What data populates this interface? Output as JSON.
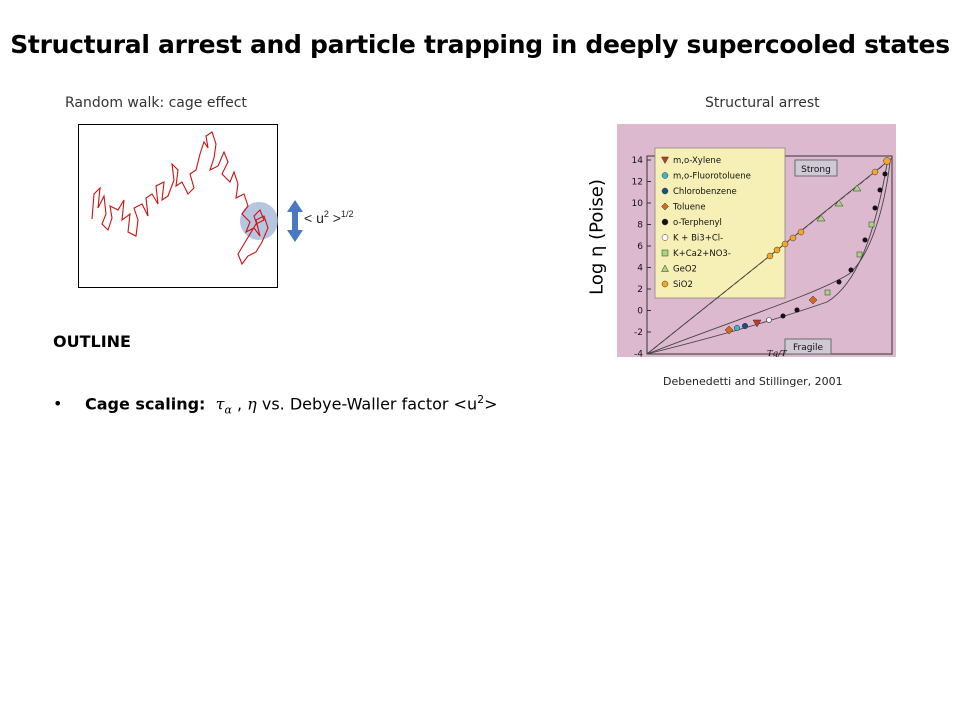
{
  "slide": {
    "title": "Structural arrest and particle trapping in deeply supercooled states"
  },
  "left_panel": {
    "caption": "Random walk: cage effect",
    "msd_label": "< u",
    "msd_sup": "2",
    "msd_close": " >",
    "msd_exponent": "1/2",
    "walk_color": "#cc1111",
    "cage_color": "#9fb3d6",
    "arrow_color": "#4a78c4"
  },
  "right_panel": {
    "caption": "Structural arrest",
    "ylabel": "Log η (Poise)",
    "credit": "Debenedetti and Stillinger, 2001",
    "figure": {
      "background": "#ddb9cf",
      "legend_background": "#f6f0b6",
      "y_ticks": [
        "14",
        "12",
        "10",
        "8",
        "6",
        "4",
        "2",
        "0",
        "-2",
        "-4"
      ],
      "xlabel": "Tg/T",
      "strong_label": "Strong",
      "fragile_label": "Fragile",
      "legend": [
        {
          "label": "m,o-Xylene",
          "color": "#c0392b",
          "shape": "tri-down"
        },
        {
          "label": "m,o-Fluorotoluene",
          "color": "#3fb6c8",
          "shape": "circle"
        },
        {
          "label": "Chlorobenzene",
          "color": "#1c4f8a",
          "shape": "circle"
        },
        {
          "label": "Toluene",
          "color": "#d2691e",
          "shape": "diamond"
        },
        {
          "label": "o-Terphenyl",
          "color": "#111111",
          "shape": "circle"
        },
        {
          "label": "K + Bi3+Cl-",
          "color": "#ffffff",
          "shape": "circle"
        },
        {
          "label": "K+Ca2+NO3-",
          "color": "#a6d77a",
          "shape": "square"
        },
        {
          "label": "GeO2",
          "color": "#a6d77a",
          "shape": "tri-up"
        },
        {
          "label": "SiO2",
          "color": "#f5a623",
          "shape": "circle"
        }
      ]
    }
  },
  "outline": {
    "heading": "OUTLINE",
    "bullet_symbol": "•",
    "item_bold": "Cage scaling:",
    "item_tau": "τ",
    "item_tau_sub": "α",
    "item_sep": " , ",
    "item_eta": "η",
    "item_rest": " vs. Debye-Waller factor <u",
    "item_sup": "2",
    "item_end": ">"
  }
}
